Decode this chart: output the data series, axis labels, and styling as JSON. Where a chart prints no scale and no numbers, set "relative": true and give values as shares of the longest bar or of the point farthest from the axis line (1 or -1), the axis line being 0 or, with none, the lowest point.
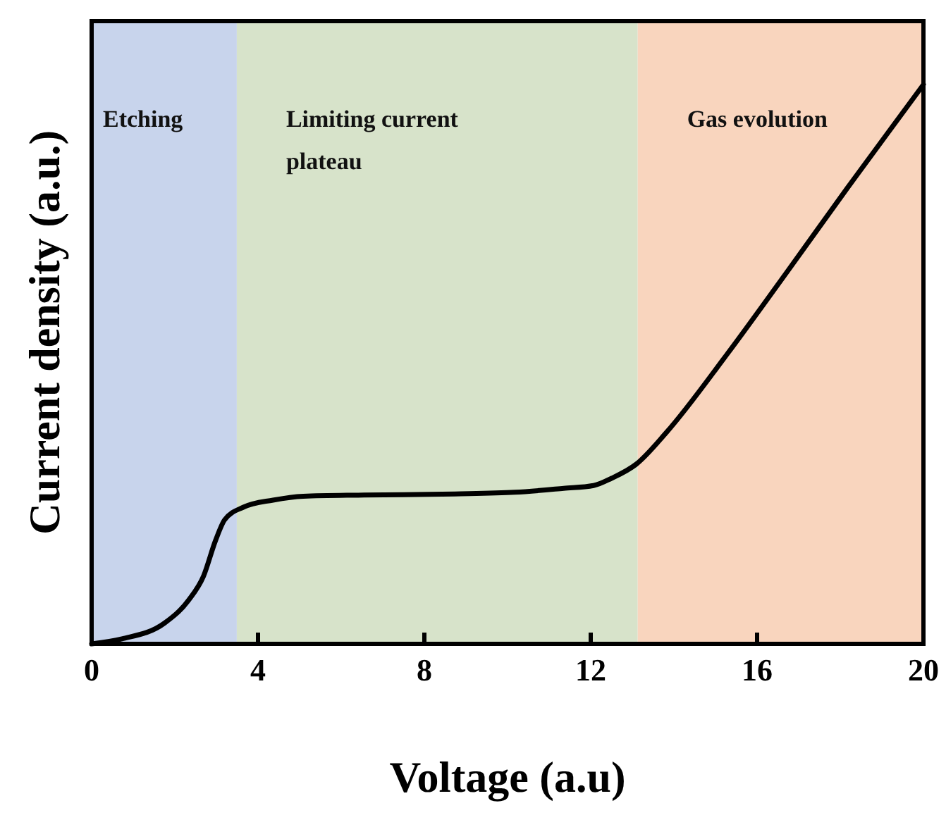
{
  "chart_data": {
    "type": "line",
    "xlabel": "Voltage (a.u)",
    "ylabel": "Current density (a.u.)",
    "relative": true,
    "xlim": [
      0,
      20
    ],
    "xticks": [
      0,
      4,
      8,
      12,
      16,
      20
    ],
    "line_style": "solid",
    "marker": "none",
    "grid": false,
    "bands": [
      {
        "axis": "x",
        "from": 0,
        "to": 3.49,
        "label": "Etching",
        "color": "#c8d4ec"
      },
      {
        "axis": "x",
        "from": 3.49,
        "to": 13.13,
        "label": "Limiting current plateau",
        "color": "#d7e3ca"
      },
      {
        "axis": "x",
        "from": 13.13,
        "to": 20,
        "label": "Gas evolution",
        "color": "#f9d5be"
      }
    ],
    "series": [
      {
        "color": "#000000",
        "x": [
          0,
          0.73,
          1.75,
          2.33,
          2.69,
          2.98,
          3.2,
          3.64,
          4.36,
          5.09,
          6.55,
          8.73,
          10.18,
          11.35,
          12.07,
          12.5,
          13.09,
          13.82,
          15.27,
          16.73,
          18.18,
          20
        ],
        "values": [
          0,
          0.009,
          0.037,
          0.078,
          0.121,
          0.185,
          0.222,
          0.244,
          0.257,
          0.264,
          0.266,
          0.268,
          0.271,
          0.278,
          0.283,
          0.296,
          0.321,
          0.378,
          0.517,
          0.666,
          0.816,
          1
        ]
      }
    ]
  }
}
